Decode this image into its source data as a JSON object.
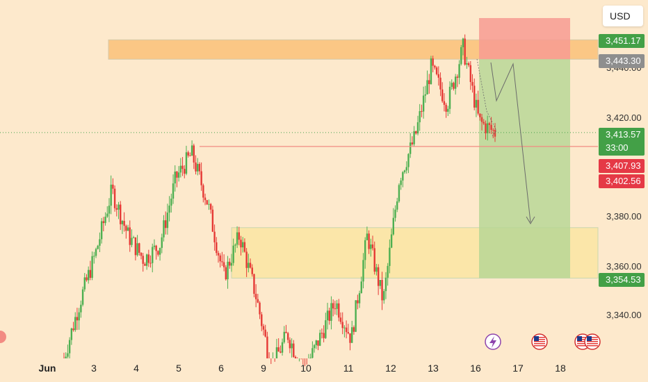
{
  "currency_button": "USD",
  "price_labels": {
    "p1": "3,451.17",
    "p2": "3,443.30",
    "p3_price": "3,413.57",
    "p3_timer": "33:00",
    "p4": "3,407.93",
    "p5": "3,402.56",
    "p6": "3,354.53"
  },
  "colors": {
    "background": "#fde9cc",
    "up": "#4caf50",
    "down": "#e53935",
    "stop_zone": "#f79b92",
    "target_zone": "#b4d693",
    "supply_zone": "#fbc785",
    "demand_zone": "#fbe6a9",
    "label_green": "#43a047",
    "label_grey": "#8e8e8e",
    "label_red": "#e53946"
  },
  "chart_data": {
    "type": "candlestick",
    "ylim": [
      3325,
      3463
    ],
    "y_ticks": [
      {
        "value": 3440,
        "label": "3,440.00"
      },
      {
        "value": 3420,
        "label": "3,420.00"
      },
      {
        "value": 3380,
        "label": "3,380.00"
      },
      {
        "value": 3360,
        "label": "3,360.00"
      },
      {
        "value": 3340,
        "label": "3,340.00"
      }
    ],
    "x_ticks": [
      "Jun",
      "3",
      "4",
      "5",
      "6",
      "9",
      "10",
      "11",
      "12",
      "13",
      "16",
      "17",
      "18"
    ],
    "close_path": [
      [
        "Jun",
        3322
      ],
      [
        "Jun",
        3345
      ],
      [
        "Jun",
        3365
      ],
      [
        "3",
        3390
      ],
      [
        "3",
        3372
      ],
      [
        "4",
        3362
      ],
      [
        "4",
        3368
      ],
      [
        "5",
        3395
      ],
      [
        "5",
        3405
      ],
      [
        "5",
        3385
      ],
      [
        "6",
        3355
      ],
      [
        "6",
        3372
      ],
      [
        "9",
        3348
      ],
      [
        "9",
        3318
      ],
      [
        "10",
        3332
      ],
      [
        "10",
        3316
      ],
      [
        "11",
        3330
      ],
      [
        "11",
        3345
      ],
      [
        "12",
        3330
      ],
      [
        "12",
        3372
      ],
      [
        "12",
        3345
      ],
      [
        "13",
        3395
      ],
      [
        "13",
        3412
      ],
      [
        "13",
        3440
      ],
      [
        "16",
        3425
      ],
      [
        "16",
        3448
      ],
      [
        "16",
        3418
      ],
      [
        "16",
        3413.57
      ]
    ],
    "levels": {
      "current_price": 3413.57,
      "resistance_line": 3407.93,
      "supply_zone": [
        3443.3,
        3451.17
      ],
      "demand_zone": [
        3354.53,
        3375
      ],
      "short_position": {
        "entry": 3443.3,
        "stop": 3460,
        "target": 3354.53
      }
    }
  }
}
